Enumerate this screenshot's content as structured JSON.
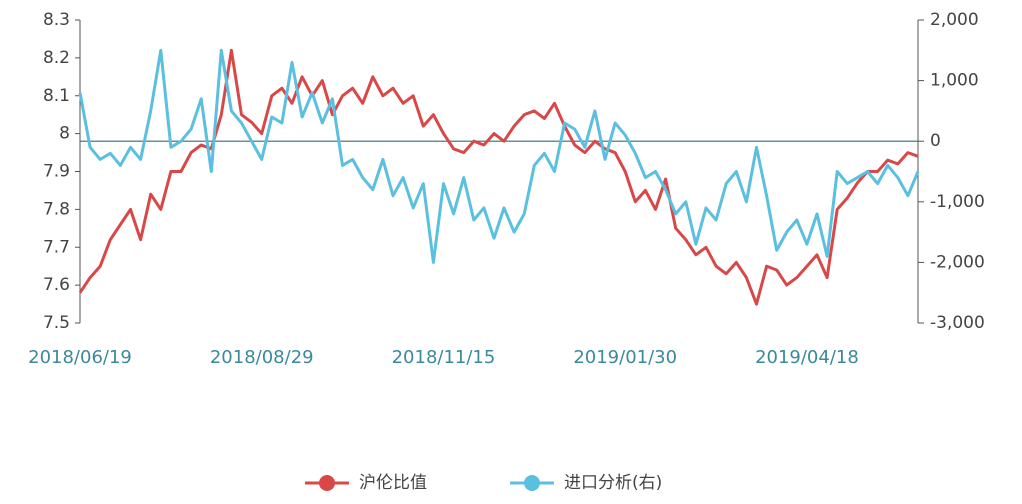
{
  "chart_data": {
    "type": "line",
    "categories": [
      "2018/06/19",
      null,
      null,
      null,
      null,
      null,
      null,
      null,
      null,
      null,
      null,
      null,
      null,
      null,
      null,
      null,
      null,
      null,
      "2018/08/29",
      null,
      null,
      null,
      null,
      null,
      null,
      null,
      null,
      null,
      null,
      null,
      null,
      null,
      null,
      null,
      null,
      null,
      "2018/11/15",
      null,
      null,
      null,
      null,
      null,
      null,
      null,
      null,
      null,
      null,
      null,
      null,
      null,
      null,
      null,
      null,
      null,
      "2019/01/30",
      null,
      null,
      null,
      null,
      null,
      null,
      null,
      null,
      null,
      null,
      null,
      null,
      null,
      null,
      null,
      null,
      null,
      "2019/04/18",
      null,
      null,
      null,
      null,
      null,
      null,
      null,
      null,
      null,
      null,
      null
    ],
    "series": [
      {
        "name": "沪伦比值",
        "color": "#d94848",
        "values": [
          7.58,
          7.62,
          7.65,
          7.72,
          7.76,
          7.8,
          7.72,
          7.84,
          7.8,
          7.9,
          7.9,
          7.95,
          7.97,
          7.96,
          8.05,
          8.22,
          8.05,
          8.03,
          8.0,
          8.1,
          8.12,
          8.08,
          8.15,
          8.1,
          8.14,
          8.05,
          8.1,
          8.12,
          8.08,
          8.15,
          8.1,
          8.12,
          8.08,
          8.1,
          8.02,
          8.05,
          8.0,
          7.96,
          7.95,
          7.98,
          7.97,
          8.0,
          7.98,
          8.02,
          8.05,
          8.06,
          8.04,
          8.08,
          8.02,
          7.97,
          7.95,
          7.98,
          7.96,
          7.95,
          7.9,
          7.82,
          7.85,
          7.8,
          7.88,
          7.75,
          7.72,
          7.68,
          7.7,
          7.65,
          7.63,
          7.66,
          7.62,
          7.55,
          7.65,
          7.64,
          7.6,
          7.62,
          7.65,
          7.68,
          7.62,
          7.8,
          7.83,
          7.87,
          7.9,
          7.9,
          7.93,
          7.92,
          7.95,
          7.94
        ]
      },
      {
        "name": "进口分析(右)",
        "color": "#5bbfe0",
        "axis": "y2",
        "values": [
          800,
          -100,
          -300,
          -200,
          -400,
          -100,
          -300,
          500,
          1500,
          -100,
          0,
          200,
          700,
          -500,
          1500,
          500,
          300,
          0,
          -300,
          400,
          300,
          1300,
          400,
          800,
          300,
          700,
          -400,
          -300,
          -600,
          -800,
          -300,
          -900,
          -600,
          -1100,
          -700,
          -2000,
          -700,
          -1200,
          -600,
          -1300,
          -1100,
          -1600,
          -1100,
          -1500,
          -1200,
          -400,
          -200,
          -500,
          300,
          200,
          -100,
          500,
          -300,
          300,
          100,
          -200,
          -600,
          -500,
          -800,
          -1200,
          -1000,
          -1700,
          -1100,
          -1300,
          -700,
          -500,
          -1000,
          -100,
          -900,
          -1800,
          -1500,
          -1300,
          -1700,
          -1200,
          -1900,
          -500,
          -700,
          -600,
          -500,
          -700,
          -400,
          -600,
          -900,
          -500
        ]
      }
    ],
    "ylim": [
      7.5,
      8.3
    ],
    "yticks": [
      7.5,
      7.6,
      7.7,
      7.8,
      7.9,
      8,
      8.1,
      8.2,
      8.3
    ],
    "y2lim": [
      -3000,
      2000
    ],
    "y2ticks": [
      {
        "value": -3000,
        "label": "-3,000"
      },
      {
        "value": -2000,
        "label": "-2,000"
      },
      {
        "value": -1000,
        "label": "-1,000"
      },
      0,
      {
        "value": 1000,
        "label": "1,000"
      },
      {
        "value": 2000,
        "label": "2,000"
      }
    ],
    "legend": "bottom"
  }
}
